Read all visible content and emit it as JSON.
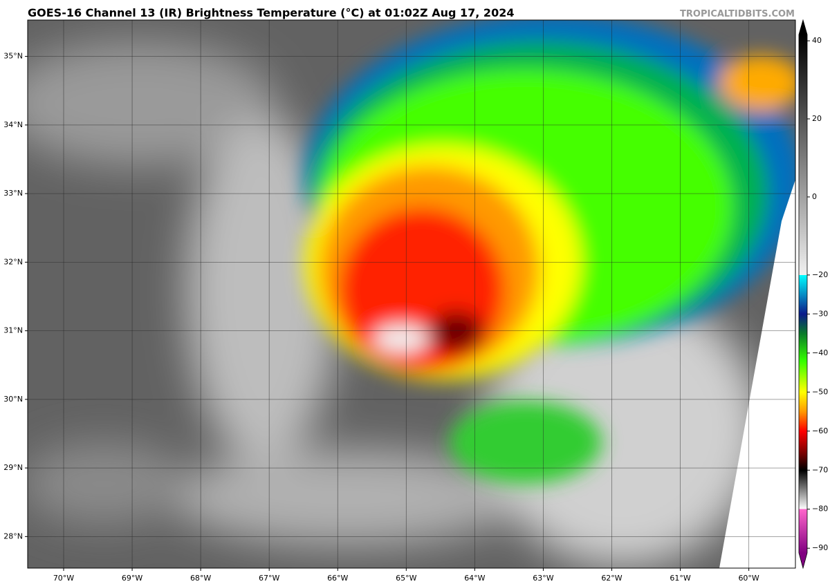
{
  "chart_data": {
    "type": "map",
    "title": "GOES-16 Channel 13 (IR) Brightness Temperature (°C) at 01:02Z Aug 17, 2024",
    "watermark": "TROPICALTIDBITS.COM",
    "xlim": [
      -70.525,
      -59.32
    ],
    "ylim": [
      27.54,
      35.53
    ],
    "xticks": [
      {
        "value": -70,
        "label": "70°W"
      },
      {
        "value": -69,
        "label": "69°W"
      },
      {
        "value": -68,
        "label": "68°W"
      },
      {
        "value": -67,
        "label": "67°W"
      },
      {
        "value": -66,
        "label": "66°W"
      },
      {
        "value": -65,
        "label": "65°W"
      },
      {
        "value": -64,
        "label": "64°W"
      },
      {
        "value": -63,
        "label": "63°W"
      },
      {
        "value": -62,
        "label": "62°W"
      },
      {
        "value": -61,
        "label": "61°W"
      },
      {
        "value": -60,
        "label": "60°W"
      }
    ],
    "yticks": [
      {
        "value": 28,
        "label": "28°N"
      },
      {
        "value": 29,
        "label": "29°N"
      },
      {
        "value": 30,
        "label": "30°N"
      },
      {
        "value": 31,
        "label": "31°N"
      },
      {
        "value": 32,
        "label": "32°N"
      },
      {
        "value": 33,
        "label": "33°N"
      },
      {
        "value": 34,
        "label": "34°N"
      },
      {
        "value": 35,
        "label": "35°N"
      }
    ],
    "grid": true,
    "colorbar": {
      "lim": [
        -91.2,
        41.6
      ],
      "ticks": [
        40,
        20,
        0,
        {
          "value": -20,
          "label": "−20"
        },
        {
          "value": -30,
          "label": "−30"
        },
        {
          "value": -40,
          "label": "−40"
        },
        {
          "value": -50,
          "label": "−50"
        },
        {
          "value": -60,
          "label": "−60"
        },
        {
          "value": -70,
          "label": "−70"
        },
        {
          "value": -80,
          "label": "−80"
        },
        {
          "value": -90,
          "label": "−90"
        }
      ],
      "colormap": [
        {
          "value": 41.6,
          "color": "#000000"
        },
        {
          "value": -20,
          "color": "#f0f0f0"
        },
        {
          "value": -20,
          "color": "#00ffff"
        },
        {
          "value": -30,
          "color": "#0a1a8a"
        },
        {
          "value": -35,
          "color": "#0a7a2a"
        },
        {
          "value": -42,
          "color": "#33ff00"
        },
        {
          "value": -50,
          "color": "#ffff00"
        },
        {
          "value": -55,
          "color": "#ff9900"
        },
        {
          "value": -60,
          "color": "#ff0000"
        },
        {
          "value": -66,
          "color": "#700000"
        },
        {
          "value": -70,
          "color": "#000000"
        },
        {
          "value": -80,
          "color": "#ffffff"
        },
        {
          "value": -80,
          "color": "#ff66cc"
        },
        {
          "value": -91.2,
          "color": "#800080"
        }
      ]
    }
  }
}
